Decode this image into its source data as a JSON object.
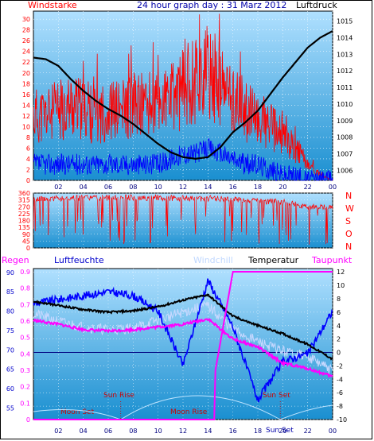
{
  "header": {
    "left_label": "Windstarke",
    "title": "24 hour graph day : 31 Marz 2012",
    "right_label": "Luftdruck"
  },
  "legend": {
    "regen": "Regen",
    "luftfeuchte": "Luftfeuchte",
    "windchill": "Windchill",
    "temperatur": "Temperatur",
    "taupunkt": "Taupunkt"
  },
  "annotations": {
    "moon_set": "Moon Set",
    "sun_rise": "Sun Rise",
    "moon_rise": "Moon Rise",
    "sun_set_1": "Sun Set",
    "sun_set_2": "Sun Set"
  },
  "colors": {
    "wind": "#ff0000",
    "gust": "#0000ff",
    "pressure": "#000000",
    "temperature": "#000000",
    "windchill": "#c8d8ff",
    "dewpoint": "#ff00ff",
    "humidity": "#0000ff",
    "rain": "#ff00ff",
    "direction": "#ff0000",
    "bg_top": "#b0e0ff",
    "bg_bottom": "#1a8fd0"
  },
  "chart_data": [
    {
      "type": "line",
      "name": "wind-pressure",
      "x_ticks": [
        "02",
        "04",
        "06",
        "08",
        "10",
        "12",
        "14",
        "16",
        "18",
        "20",
        "22",
        "00"
      ],
      "y_left_ticks": [
        0,
        2,
        4,
        6,
        8,
        10,
        12,
        14,
        16,
        18,
        20,
        22,
        24,
        26,
        28,
        30
      ],
      "ylim_left": [
        0,
        31.5
      ],
      "y_right_ticks": [
        1006,
        1007,
        1008,
        1009,
        1010,
        1011,
        1012,
        1013,
        1014,
        1015
      ],
      "ylim_right": [
        1005.4,
        1015.6
      ],
      "series": [
        {
          "axis": "right",
          "x": [
            0,
            1,
            2,
            3,
            4,
            5,
            6,
            7,
            8,
            9,
            10,
            11,
            12,
            13,
            14,
            15,
            16,
            17,
            18,
            19,
            20,
            21,
            22,
            23,
            24
          ],
          "values": [
            1012.8,
            1012.7,
            1012.3,
            1011.5,
            1010.8,
            1010.2,
            1009.7,
            1009.3,
            1008.8,
            1008.2,
            1007.6,
            1007.1,
            1006.8,
            1006.7,
            1006.8,
            1007.4,
            1008.3,
            1008.9,
            1009.6,
            1010.6,
            1011.6,
            1012.5,
            1013.4,
            1014.0,
            1014.4
          ]
        },
        {
          "axis": "left",
          "x": [
            0,
            1,
            2,
            3,
            4,
            5,
            6,
            7,
            8,
            9,
            10,
            11,
            12,
            13,
            14,
            15,
            16,
            17,
            18,
            19,
            20,
            21,
            22,
            23,
            24
          ],
          "values": [
            12,
            12,
            13,
            14,
            13,
            12,
            13,
            13,
            14,
            14,
            14,
            15,
            17,
            19,
            20,
            17,
            15,
            13,
            11,
            10,
            8,
            6,
            3,
            1,
            0
          ]
        },
        {
          "axis": "left",
          "x": [
            0,
            1,
            2,
            3,
            4,
            5,
            6,
            7,
            8,
            9,
            10,
            11,
            12,
            13,
            14,
            15,
            16,
            17,
            18,
            19,
            20,
            21,
            22,
            23,
            24
          ],
          "values": [
            3,
            3,
            3,
            3,
            3,
            3,
            3,
            3,
            3,
            3,
            3,
            4,
            5,
            5,
            6,
            5,
            4,
            3,
            3,
            2,
            1,
            1,
            0,
            0,
            0
          ]
        }
      ]
    },
    {
      "type": "line",
      "name": "wind-direction",
      "x_ticks": [
        "02",
        "04",
        "06",
        "08",
        "10",
        "12",
        "14",
        "16",
        "18",
        "20",
        "22",
        "00"
      ],
      "y_ticks": [
        0,
        45,
        90,
        135,
        180,
        225,
        270,
        315,
        360
      ],
      "ylim": [
        0,
        360
      ],
      "direction_labels": [
        "N",
        "W",
        "S",
        "O",
        "N"
      ],
      "series": [
        {
          "x": [
            0,
            2,
            4,
            6,
            8,
            10,
            12,
            14,
            16,
            18,
            20,
            22,
            24
          ],
          "values": [
            320,
            325,
            330,
            330,
            330,
            330,
            325,
            325,
            320,
            310,
            300,
            270,
            270
          ]
        }
      ]
    },
    {
      "type": "line",
      "name": "temperature-humidity",
      "x_ticks": [
        "02",
        "04",
        "06",
        "08",
        "10",
        "12",
        "14",
        "16",
        "18",
        "20",
        "22",
        "00"
      ],
      "y_left_rain_ticks": [
        0,
        0.1,
        0.2,
        0.3,
        0.4,
        0.5,
        0.6,
        0.7,
        0.8,
        0.9
      ],
      "y_left_humidity_ticks": [
        55,
        60,
        65,
        70,
        75,
        80,
        85,
        90
      ],
      "y_right_ticks": [
        12,
        10,
        8,
        6,
        4,
        2,
        0,
        -2,
        -4,
        -6,
        -8,
        -10
      ],
      "ylim_right": [
        -10,
        12.5
      ],
      "series": [
        {
          "name": "Temperatur",
          "axis": "right",
          "x": [
            0,
            2,
            4,
            6,
            8,
            10,
            12,
            14,
            16,
            18,
            20,
            22,
            24
          ],
          "values": [
            7.6,
            7.0,
            6.4,
            6.0,
            6.2,
            6.8,
            7.8,
            8.6,
            5.4,
            4.0,
            2.8,
            1.2,
            -1.0
          ]
        },
        {
          "name": "Windchill",
          "axis": "right",
          "x": [
            0,
            2,
            4,
            6,
            8,
            10,
            12,
            14,
            16,
            18,
            20,
            22,
            24
          ],
          "values": [
            5.8,
            4.6,
            3.8,
            3.4,
            3.6,
            4.8,
            6.0,
            7.0,
            3.4,
            1.6,
            0.2,
            -0.6,
            -2.8
          ]
        },
        {
          "name": "Taupunkt",
          "axis": "right",
          "x": [
            0,
            2,
            4,
            6,
            8,
            10,
            12,
            14,
            16,
            18,
            20,
            22,
            24
          ],
          "values": [
            4.8,
            4.2,
            3.4,
            3.2,
            3.4,
            3.8,
            4.2,
            5.0,
            2.0,
            0.8,
            -1.6,
            -2.4,
            -3.6
          ]
        },
        {
          "name": "Luftfeuchte",
          "axis": "left",
          "x": [
            0,
            2,
            4,
            6,
            8,
            10,
            12,
            14,
            16,
            18,
            20,
            22,
            24
          ],
          "values": [
            82,
            83,
            84,
            85,
            84,
            80,
            66,
            88,
            76,
            57,
            67,
            69,
            80
          ]
        },
        {
          "name": "Regen",
          "axis": "left",
          "x": [
            0,
            14.5,
            14.6,
            16,
            24
          ],
          "values": [
            0,
            0,
            0.3,
            0.9,
            0.9
          ]
        }
      ]
    }
  ]
}
